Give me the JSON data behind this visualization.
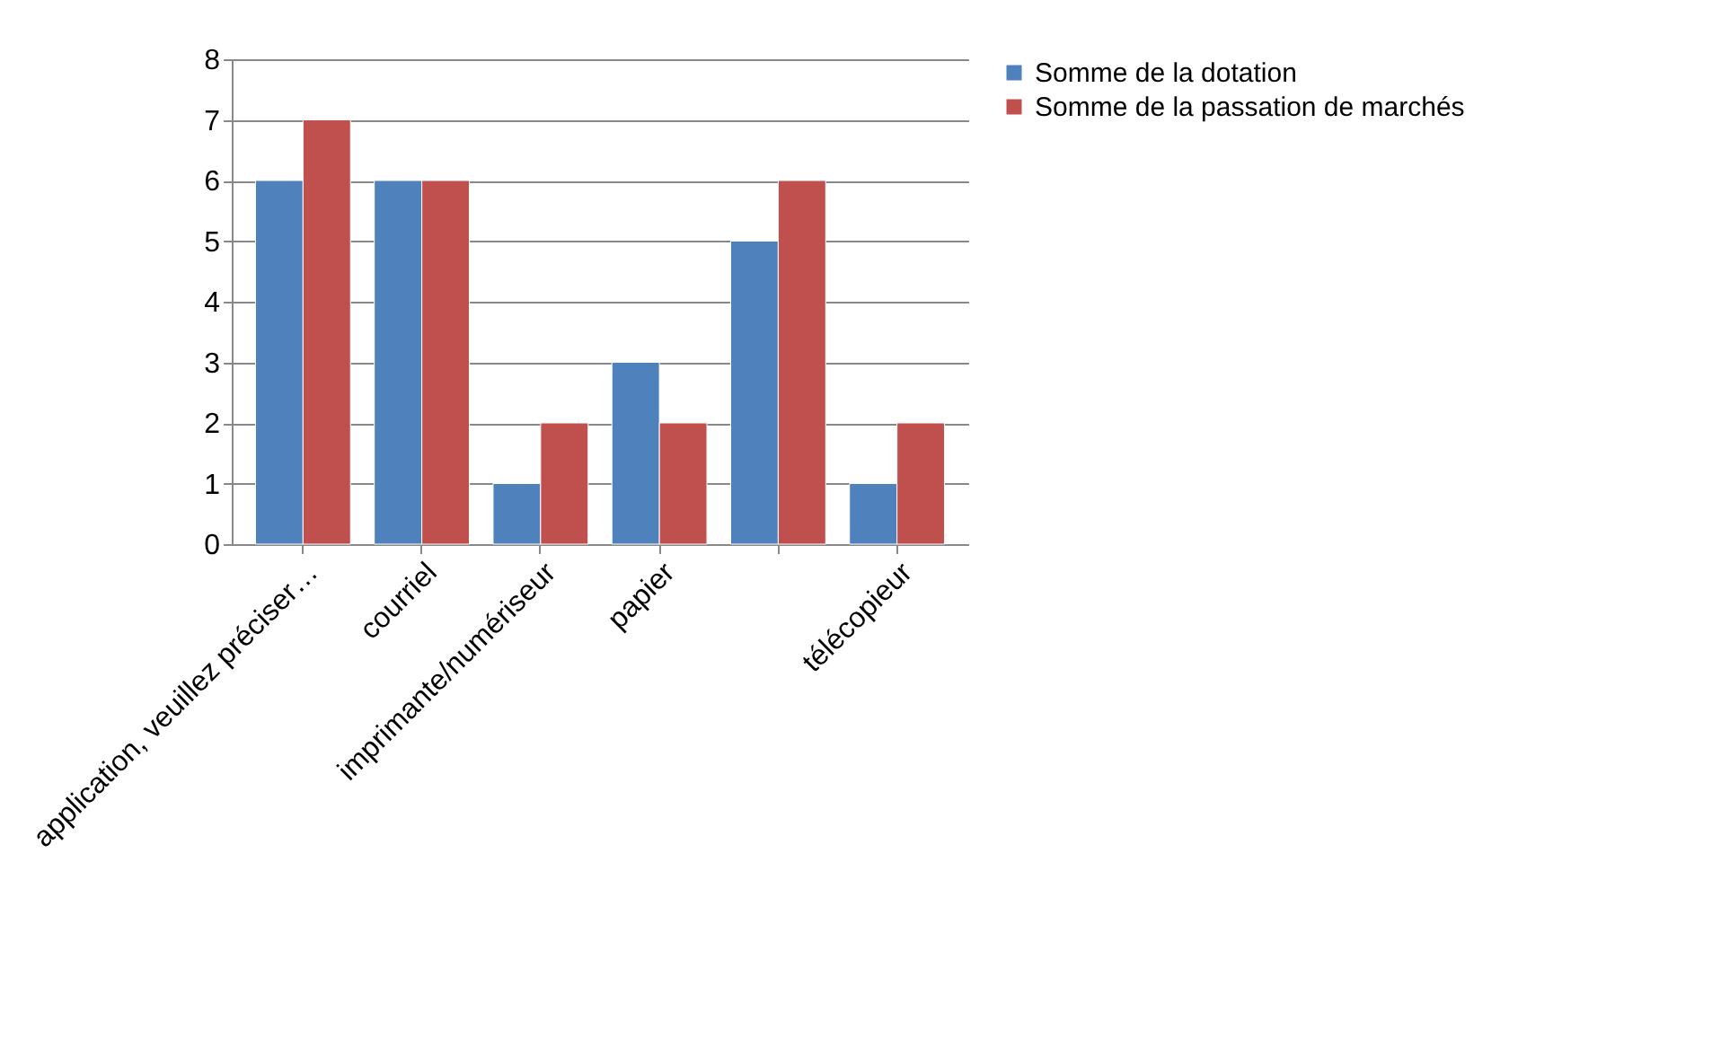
{
  "chart_data": {
    "type": "bar",
    "categories": [
      "application, veuillez préciser…",
      "courriel",
      "imprimante/numériseur",
      "papier",
      null,
      "télécopieur"
    ],
    "series": [
      {
        "name": "Somme de la dotation",
        "color": "#4f81bd",
        "values": [
          6,
          6,
          1,
          3,
          5,
          1
        ]
      },
      {
        "name": "Somme de la passation de marchés",
        "color": "#c0504d",
        "values": [
          7,
          6,
          2,
          2,
          6,
          2
        ]
      }
    ],
    "ylim": [
      0,
      8
    ],
    "yticks": [
      0,
      1,
      2,
      3,
      4,
      5,
      6,
      7,
      8
    ],
    "grid": "y",
    "legend": "right"
  }
}
